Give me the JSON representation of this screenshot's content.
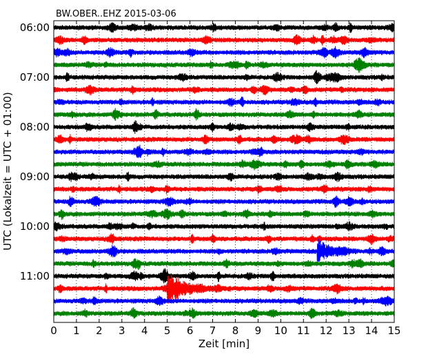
{
  "chart_data": {
    "type": "line",
    "title": "BW.OBER..EHZ 2015-03-06",
    "xlabel": "Zeit  [min]",
    "ylabel": "UTC (Lokalzeit = UTC + 01:00)",
    "xlim": [
      0,
      15
    ],
    "x_ticks": [
      0,
      1,
      2,
      3,
      4,
      5,
      6,
      7,
      8,
      9,
      10,
      11,
      12,
      13,
      14,
      15
    ],
    "x_tick_labels": [
      "0",
      "1",
      "2",
      "3",
      "4",
      "5",
      "6",
      "7",
      "8",
      "9",
      "10",
      "11",
      "12",
      "13",
      "14",
      "15"
    ],
    "y_tick_labels": [
      "06:00",
      "07:00",
      "08:00",
      "09:00",
      "10:00",
      "11:00"
    ],
    "trace_interval_min": 15,
    "grid": "vertical dotted",
    "colors": [
      "#000000",
      "#ff0000",
      "#0000ff",
      "#008000"
    ],
    "series": [
      {
        "start": "06:00",
        "events": []
      },
      {
        "start": "06:15",
        "events": []
      },
      {
        "start": "06:30",
        "events": []
      },
      {
        "start": "06:45",
        "events": []
      },
      {
        "start": "07:00",
        "events": []
      },
      {
        "start": "07:15",
        "events": []
      },
      {
        "start": "07:30",
        "events": []
      },
      {
        "start": "07:45",
        "events": []
      },
      {
        "start": "08:00",
        "events": []
      },
      {
        "start": "08:15",
        "events": []
      },
      {
        "start": "08:30",
        "events": []
      },
      {
        "start": "08:45",
        "events": []
      },
      {
        "start": "09:00",
        "events": []
      },
      {
        "start": "09:15",
        "events": []
      },
      {
        "start": "09:30",
        "events": []
      },
      {
        "start": "09:45",
        "events": []
      },
      {
        "start": "10:00",
        "events": []
      },
      {
        "start": "10:15",
        "events": []
      },
      {
        "start": "10:30",
        "events": [
          {
            "start": 11.6,
            "end": 13.4
          }
        ]
      },
      {
        "start": "10:45",
        "events": []
      },
      {
        "start": "11:00",
        "events": []
      },
      {
        "start": "11:15",
        "events": [
          {
            "start": 5.0,
            "end": 7.8
          }
        ]
      },
      {
        "start": "11:30",
        "events": []
      },
      {
        "start": "11:45",
        "events": []
      }
    ]
  }
}
